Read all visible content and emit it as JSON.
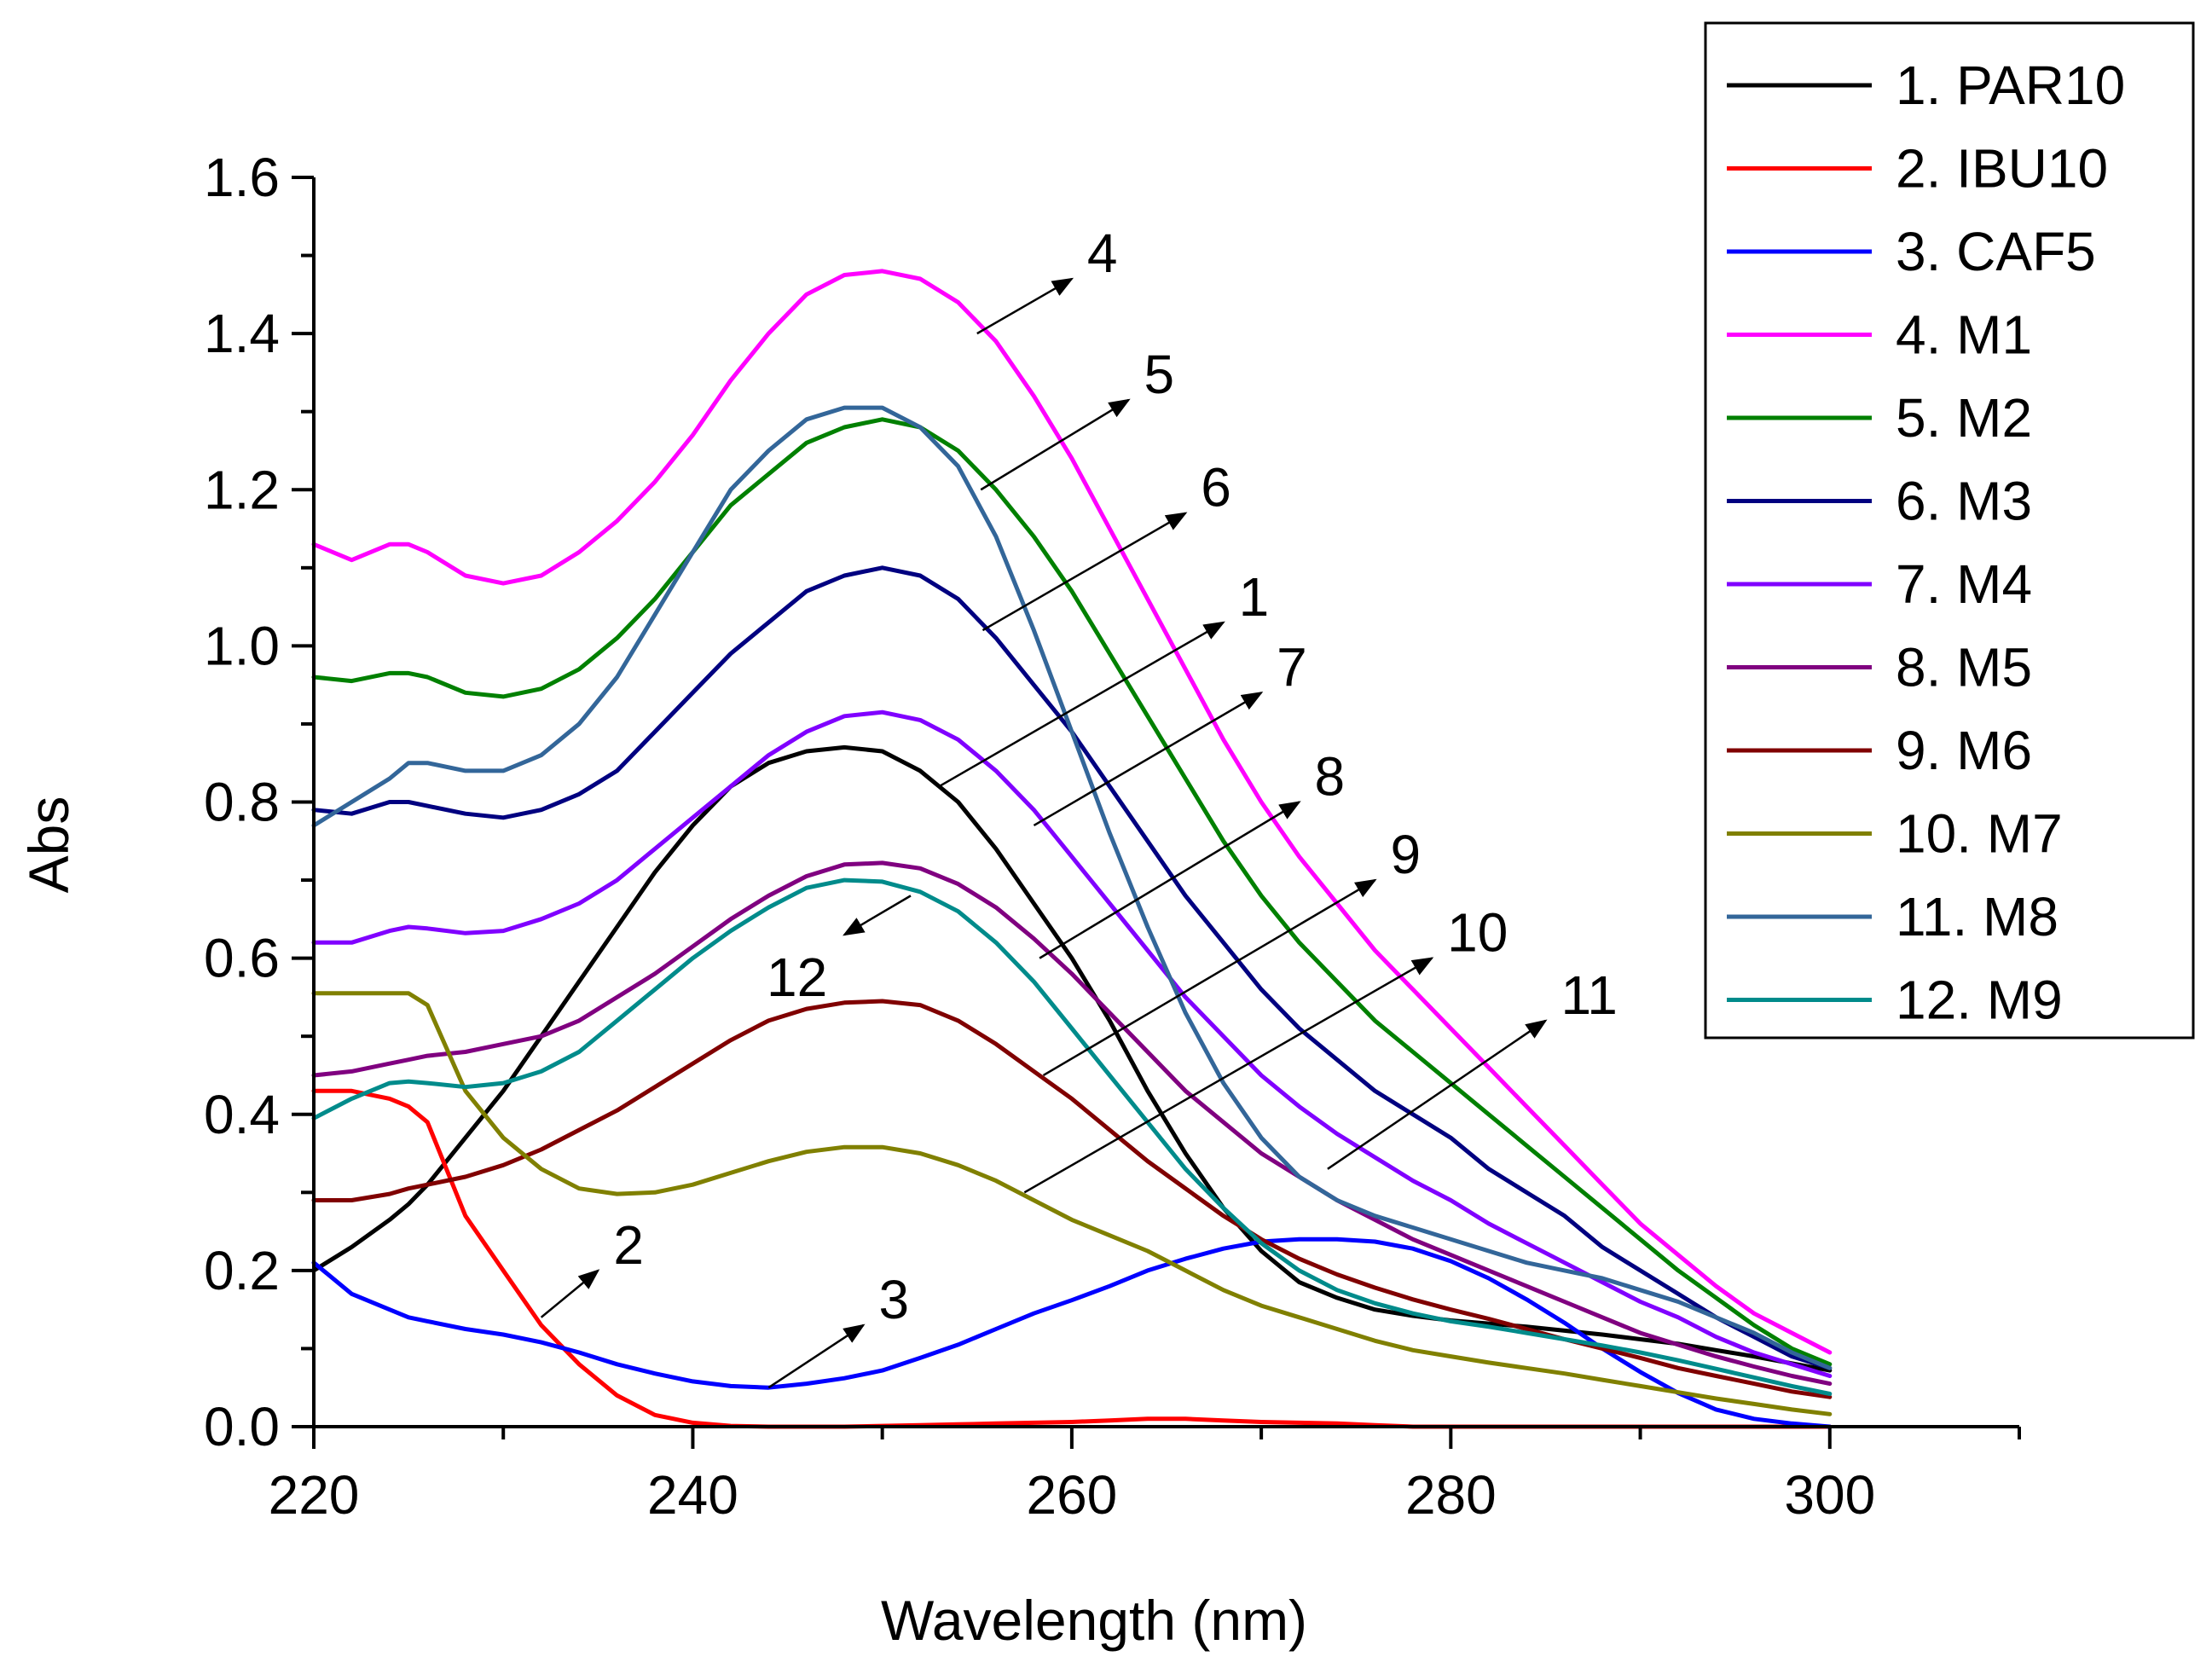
{
  "chart_data": {
    "type": "line",
    "title": "",
    "xlabel": "Wavelength (nm)",
    "ylabel": "Abs",
    "xlim": [
      220,
      310
    ],
    "ylim": [
      0,
      1.6
    ],
    "xticks": [
      220,
      240,
      260,
      280,
      300
    ],
    "xtick_labels": [
      "220",
      "240",
      "260",
      "280",
      "300"
    ],
    "yticks": [
      0,
      0.2,
      0.4,
      0.6,
      0.8,
      1.0,
      1.2,
      1.4,
      1.6
    ],
    "ytick_labels": [
      "0.0",
      "0.2",
      "0.4",
      "0.6",
      "0.8",
      "1.0",
      "1.2",
      "1.4",
      "1.6"
    ],
    "grid": false,
    "legend_position": "top-right, outside plot",
    "x": [
      220,
      222,
      224,
      225,
      226,
      228,
      230,
      232,
      234,
      236,
      238,
      240,
      242,
      244,
      246,
      248,
      250,
      252,
      254,
      256,
      258,
      260,
      262,
      264,
      266,
      268,
      270,
      272,
      274,
      276,
      278,
      280,
      282,
      284,
      286,
      288,
      290,
      292,
      294,
      296,
      298,
      300
    ],
    "series": [
      {
        "name": "1. PAR10",
        "color": "#000000",
        "values": [
          0.2,
          0.23,
          0.265,
          0.285,
          0.31,
          0.37,
          0.43,
          0.5,
          0.57,
          0.64,
          0.71,
          0.77,
          0.82,
          0.85,
          0.865,
          0.87,
          0.865,
          0.84,
          0.8,
          0.74,
          0.67,
          0.6,
          0.52,
          0.43,
          0.35,
          0.28,
          0.225,
          0.185,
          0.165,
          0.15,
          0.142,
          0.136,
          0.132,
          0.128,
          0.123,
          0.118,
          0.112,
          0.106,
          0.098,
          0.09,
          0.081,
          0.072
        ]
      },
      {
        "name": "2. IBU10",
        "color": "#ff0000",
        "values": [
          0.43,
          0.43,
          0.42,
          0.41,
          0.39,
          0.27,
          0.2,
          0.13,
          0.08,
          0.04,
          0.015,
          0.005,
          0.001,
          0.0,
          0.0,
          0.0,
          0.001,
          0.002,
          0.003,
          0.004,
          0.005,
          0.006,
          0.008,
          0.01,
          0.01,
          0.008,
          0.006,
          0.005,
          0.004,
          0.002,
          0.0,
          0.0,
          0.0,
          0.0,
          0.0,
          0.0,
          0.0,
          0.0,
          0.0,
          0.0,
          0.0,
          0.0
        ]
      },
      {
        "name": "3. CAF5",
        "color": "#0000ff",
        "values": [
          0.21,
          0.17,
          0.15,
          0.14,
          0.135,
          0.125,
          0.118,
          0.108,
          0.095,
          0.08,
          0.068,
          0.058,
          0.052,
          0.05,
          0.055,
          0.062,
          0.072,
          0.088,
          0.105,
          0.125,
          0.145,
          0.162,
          0.18,
          0.2,
          0.215,
          0.228,
          0.237,
          0.24,
          0.24,
          0.237,
          0.228,
          0.212,
          0.19,
          0.163,
          0.133,
          0.1,
          0.07,
          0.043,
          0.022,
          0.01,
          0.004,
          0.0
        ]
      },
      {
        "name": "4. M1",
        "color": "#ff00ff",
        "values": [
          1.13,
          1.11,
          1.13,
          1.13,
          1.12,
          1.09,
          1.08,
          1.09,
          1.12,
          1.16,
          1.21,
          1.27,
          1.34,
          1.4,
          1.45,
          1.475,
          1.48,
          1.47,
          1.44,
          1.39,
          1.32,
          1.24,
          1.15,
          1.06,
          0.97,
          0.88,
          0.8,
          0.73,
          0.67,
          0.61,
          0.56,
          0.51,
          0.46,
          0.41,
          0.36,
          0.31,
          0.26,
          0.22,
          0.18,
          0.145,
          0.12,
          0.095
        ]
      },
      {
        "name": "5. M2",
        "color": "#008000",
        "values": [
          0.96,
          0.955,
          0.965,
          0.965,
          0.96,
          0.94,
          0.935,
          0.945,
          0.97,
          1.01,
          1.06,
          1.12,
          1.18,
          1.22,
          1.26,
          1.28,
          1.29,
          1.28,
          1.25,
          1.2,
          1.14,
          1.07,
          0.99,
          0.91,
          0.83,
          0.75,
          0.68,
          0.62,
          0.57,
          0.52,
          0.48,
          0.44,
          0.4,
          0.36,
          0.32,
          0.28,
          0.24,
          0.2,
          0.165,
          0.13,
          0.1,
          0.08
        ]
      },
      {
        "name": "6. M3",
        "color": "#000080",
        "values": [
          0.79,
          0.785,
          0.8,
          0.8,
          0.795,
          0.785,
          0.78,
          0.79,
          0.81,
          0.84,
          0.89,
          0.94,
          0.99,
          1.03,
          1.07,
          1.09,
          1.1,
          1.09,
          1.06,
          1.01,
          0.95,
          0.89,
          0.82,
          0.75,
          0.68,
          0.62,
          0.56,
          0.51,
          0.47,
          0.43,
          0.4,
          0.37,
          0.33,
          0.3,
          0.27,
          0.23,
          0.2,
          0.17,
          0.14,
          0.115,
          0.09,
          0.075
        ]
      },
      {
        "name": "7. M4",
        "color": "#8000ff",
        "values": [
          0.62,
          0.62,
          0.635,
          0.64,
          0.638,
          0.632,
          0.635,
          0.65,
          0.67,
          0.7,
          0.74,
          0.78,
          0.82,
          0.86,
          0.89,
          0.91,
          0.915,
          0.905,
          0.88,
          0.84,
          0.79,
          0.73,
          0.67,
          0.61,
          0.55,
          0.5,
          0.45,
          0.41,
          0.375,
          0.345,
          0.315,
          0.29,
          0.26,
          0.235,
          0.21,
          0.185,
          0.16,
          0.14,
          0.115,
          0.095,
          0.08,
          0.065
        ]
      },
      {
        "name": "8. M5",
        "color": "#800080",
        "values": [
          0.45,
          0.455,
          0.465,
          0.47,
          0.475,
          0.48,
          0.49,
          0.5,
          0.52,
          0.55,
          0.58,
          0.615,
          0.65,
          0.68,
          0.705,
          0.72,
          0.722,
          0.715,
          0.695,
          0.665,
          0.625,
          0.58,
          0.53,
          0.48,
          0.43,
          0.39,
          0.35,
          0.32,
          0.29,
          0.265,
          0.24,
          0.22,
          0.2,
          0.18,
          0.16,
          0.14,
          0.12,
          0.105,
          0.09,
          0.077,
          0.065,
          0.055
        ]
      },
      {
        "name": "9. M6",
        "color": "#800000",
        "values": [
          0.29,
          0.29,
          0.298,
          0.305,
          0.31,
          0.32,
          0.335,
          0.355,
          0.38,
          0.405,
          0.435,
          0.465,
          0.495,
          0.52,
          0.535,
          0.543,
          0.545,
          0.54,
          0.52,
          0.49,
          0.455,
          0.42,
          0.38,
          0.34,
          0.305,
          0.27,
          0.24,
          0.215,
          0.195,
          0.178,
          0.163,
          0.15,
          0.138,
          0.125,
          0.112,
          0.1,
          0.088,
          0.075,
          0.065,
          0.055,
          0.045,
          0.038
        ]
      },
      {
        "name": "10. M7",
        "color": "#808000",
        "values": [
          0.555,
          0.555,
          0.555,
          0.555,
          0.54,
          0.43,
          0.37,
          0.33,
          0.305,
          0.298,
          0.3,
          0.31,
          0.325,
          0.34,
          0.352,
          0.358,
          0.358,
          0.35,
          0.335,
          0.315,
          0.29,
          0.265,
          0.245,
          0.225,
          0.2,
          0.175,
          0.155,
          0.14,
          0.125,
          0.11,
          0.098,
          0.09,
          0.082,
          0.075,
          0.068,
          0.06,
          0.052,
          0.044,
          0.036,
          0.029,
          0.022,
          0.016
        ]
      },
      {
        "name": "11. M8",
        "color": "#336699",
        "values": [
          0.77,
          0.8,
          0.83,
          0.85,
          0.85,
          0.84,
          0.84,
          0.86,
          0.9,
          0.96,
          1.04,
          1.12,
          1.2,
          1.25,
          1.29,
          1.305,
          1.305,
          1.28,
          1.23,
          1.14,
          1.02,
          0.89,
          0.76,
          0.64,
          0.53,
          0.44,
          0.37,
          0.32,
          0.29,
          0.27,
          0.255,
          0.24,
          0.225,
          0.21,
          0.2,
          0.19,
          0.175,
          0.16,
          0.14,
          0.12,
          0.095,
          0.075
        ]
      },
      {
        "name": "12. M9",
        "color": "#008b8b",
        "values": [
          0.395,
          0.42,
          0.44,
          0.442,
          0.44,
          0.435,
          0.44,
          0.455,
          0.48,
          0.52,
          0.56,
          0.6,
          0.635,
          0.665,
          0.69,
          0.7,
          0.698,
          0.685,
          0.66,
          0.62,
          0.57,
          0.51,
          0.45,
          0.39,
          0.33,
          0.28,
          0.235,
          0.2,
          0.175,
          0.158,
          0.145,
          0.135,
          0.128,
          0.12,
          0.112,
          0.104,
          0.095,
          0.085,
          0.074,
          0.063,
          0.052,
          0.042
        ]
      }
    ],
    "annotations": [
      {
        "text": "4",
        "from": [
          255,
          1.4
        ],
        "to": [
          260,
          1.47
        ]
      },
      {
        "text": "5",
        "from": [
          255.2,
          1.2
        ],
        "to": [
          263,
          1.315
        ]
      },
      {
        "text": "6",
        "from": [
          255.3,
          1.02
        ],
        "to": [
          266,
          1.17
        ]
      },
      {
        "text": "1",
        "from": [
          253,
          0.82
        ],
        "to": [
          268,
          1.03
        ]
      },
      {
        "text": "7",
        "from": [
          258,
          0.77
        ],
        "to": [
          270,
          0.94
        ]
      },
      {
        "text": "8",
        "from": [
          258.3,
          0.6
        ],
        "to": [
          272,
          0.8
        ]
      },
      {
        "text": "9",
        "from": [
          258.5,
          0.45
        ],
        "to": [
          276,
          0.7
        ]
      },
      {
        "text": "10",
        "from": [
          257.5,
          0.3
        ],
        "to": [
          279,
          0.6
        ]
      },
      {
        "text": "11",
        "from": [
          273.5,
          0.33
        ],
        "to": [
          285,
          0.52
        ]
      },
      {
        "text": "12",
        "from": [
          251.5,
          0.68
        ],
        "to": [
          248,
          0.63
        ]
      },
      {
        "text": "2",
        "from": [
          232,
          0.14
        ],
        "to": [
          235,
          0.2
        ]
      },
      {
        "text": "3",
        "from": [
          244,
          0.05
        ],
        "to": [
          249,
          0.13
        ]
      }
    ]
  }
}
